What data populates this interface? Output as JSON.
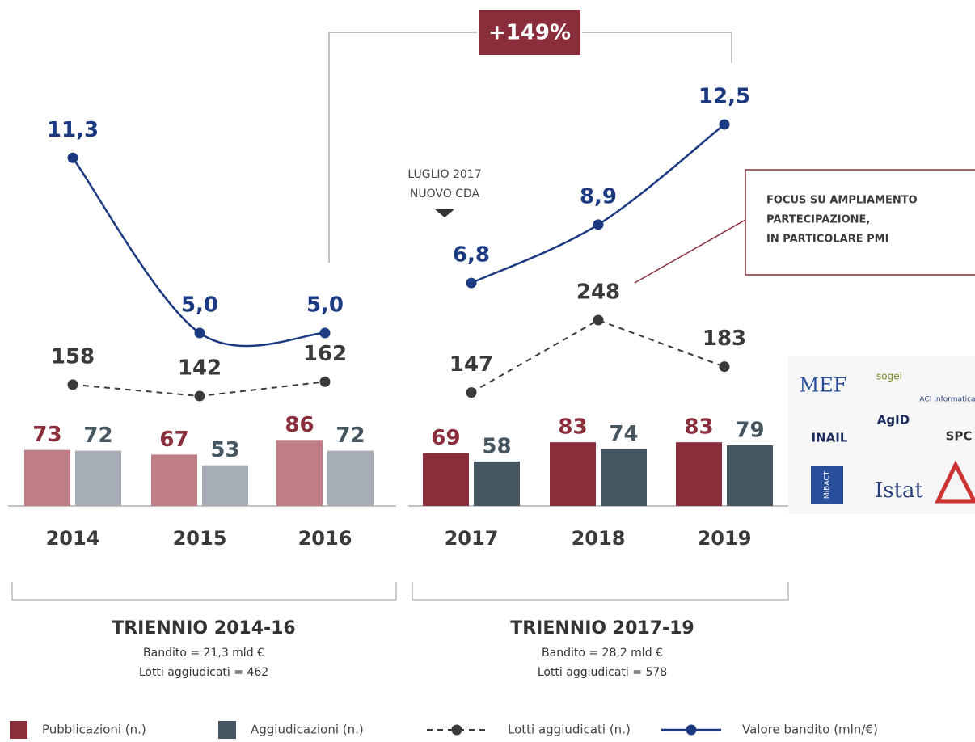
{
  "chart_data": {
    "type": "bar",
    "categories": [
      "2014",
      "2015",
      "2016",
      "2017",
      "2018",
      "2019"
    ],
    "series": [
      {
        "name": "Pubblicazioni (n.)",
        "color": "#8b2e3c",
        "colors": [
          "#c07f86",
          "#c07f86",
          "#c07f86",
          "#8b2e3c",
          "#8b2e3c",
          "#8b2e3c"
        ],
        "values": [
          73,
          67,
          86,
          69,
          83,
          83
        ]
      },
      {
        "name": "Aggiudicazioni (n.)",
        "color": "#465661",
        "colors": [
          "#a6adb5",
          "#a6adb5",
          "#a6adb5",
          "#465661",
          "#465661",
          "#465661"
        ],
        "values": [
          72,
          53,
          72,
          58,
          74,
          79
        ]
      }
    ],
    "lines": [
      {
        "name": "Lotti aggiudicati (n.)",
        "type": "line",
        "style": "dashed",
        "color": "#3a3a3a",
        "values": [
          158,
          142,
          162,
          147,
          248,
          183
        ]
      },
      {
        "name": "Valore bandito (mln/€)",
        "type": "line",
        "style": "smooth",
        "color": "#1c3a82",
        "values": [
          11.3,
          5.0,
          5.0,
          6.8,
          8.9,
          12.5
        ],
        "value_labels": [
          "11,3",
          "5,0",
          "5,0",
          "6,8",
          "8,9",
          "12,5"
        ]
      }
    ],
    "annotations": {
      "growth": "+149%",
      "event": [
        "LUGLIO 2017",
        "NUOVO CDA"
      ],
      "focus": [
        "FOCUS SU AMPLIAMENTO",
        "PARTECIPAZIONE,",
        "IN PARTICOLARE PMI"
      ]
    },
    "groups": [
      {
        "title": "TRIENNIO 2014-16",
        "lines": [
          "Bandito = 21,3 mld €",
          "Lotti aggiudicati = 462"
        ]
      },
      {
        "title": "TRIENNIO 2017-19",
        "lines": [
          "Bandito = 28,2 mld €",
          "Lotti aggiudicati = 578"
        ]
      }
    ],
    "logos": [
      "MEF",
      "sogei",
      "ACI Informatica",
      "INAIL",
      "AgID",
      "SPC",
      "MiBACT",
      "Istat"
    ]
  }
}
